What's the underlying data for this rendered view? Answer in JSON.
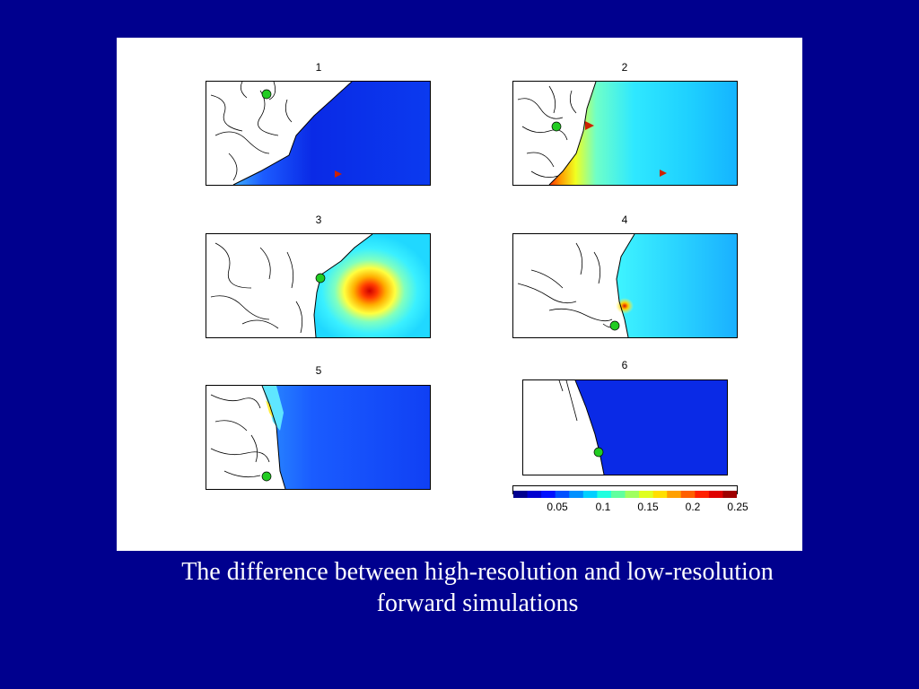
{
  "figure": {
    "panels": [
      {
        "label": "1"
      },
      {
        "label": "2"
      },
      {
        "label": "3"
      },
      {
        "label": "4"
      },
      {
        "label": "5"
      },
      {
        "label": "6"
      }
    ],
    "colorbar": {
      "ticks": [
        "0.05",
        "0.1",
        "0.15",
        "0.2",
        "0.25"
      ],
      "colormap": "jet",
      "range": [
        0,
        0.25
      ]
    },
    "marker_colors": {
      "station": "#22cc22",
      "source": "#cc2200"
    }
  },
  "caption": {
    "line1": "The difference between high-resolution and low-resolution",
    "line2": "forward simulations"
  },
  "colors": {
    "background": "#00008e",
    "figure_background": "#ffffff",
    "caption_text": "#ffffff"
  }
}
